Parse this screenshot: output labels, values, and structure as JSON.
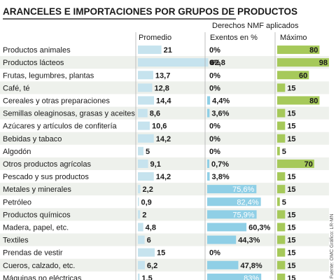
{
  "title": "ARANCELES E IMPORTACIONES POR GRUPOS DE PRODUCTOS",
  "group_header": "Derechos NMF aplicados",
  "column_headers": {
    "promedio": "Promedio",
    "exentos": "Exentos en %",
    "maximo": "Máximo"
  },
  "source": "Fuente: OMC   Gráfico: LR-MN",
  "colors": {
    "row_shade": "#eef1ec",
    "bar_promedio": "#c6e3ee",
    "bar_exentos": "#8fcfe6",
    "bar_maximo": "#a6c95a",
    "divider": "#b0b0b0",
    "title_rule": "#333333"
  },
  "chart_data": {
    "type": "table",
    "title": "ARANCELES E IMPORTACIONES POR GRUPOS DE PRODUCTOS",
    "subtitle": "Derechos NMF aplicados",
    "columns": [
      "Promedio",
      "Exentos en %",
      "Máximo"
    ],
    "rows": [
      {
        "category": "Productos animales",
        "promedio": 21,
        "promedio_label": "21",
        "exentos": 0,
        "exentos_label": "0%",
        "maximo": 80,
        "maximo_label": "80"
      },
      {
        "category": "Productos lácteos",
        "promedio": 62.8,
        "promedio_label": "62,8",
        "exentos": 0,
        "exentos_label": "0%",
        "maximo": 98,
        "maximo_label": "98"
      },
      {
        "category": "Frutas, legumbres, plantas",
        "promedio": 13.7,
        "promedio_label": "13,7",
        "exentos": 0,
        "exentos_label": "0%",
        "maximo": 60,
        "maximo_label": "60"
      },
      {
        "category": "Café, té",
        "promedio": 12.8,
        "promedio_label": "12,8",
        "exentos": 0,
        "exentos_label": "0%",
        "maximo": 15,
        "maximo_label": "15"
      },
      {
        "category": "Cereales y otras preparaciones",
        "promedio": 14.4,
        "promedio_label": "14,4",
        "exentos": 4.4,
        "exentos_label": "4,4%",
        "maximo": 80,
        "maximo_label": "80"
      },
      {
        "category": "Semillas oleaginosas, grasas y aceites",
        "promedio": 8.6,
        "promedio_label": "8,6",
        "exentos": 3.6,
        "exentos_label": "3,6%",
        "maximo": 15,
        "maximo_label": "15"
      },
      {
        "category": "Azúcares y artículos de confitería",
        "promedio": 10.6,
        "promedio_label": "10,6",
        "exentos": 0,
        "exentos_label": "0%",
        "maximo": 15,
        "maximo_label": "15"
      },
      {
        "category": "Bebidas y tabaco",
        "promedio": 14.2,
        "promedio_label": "14,2",
        "exentos": 0,
        "exentos_label": "0%",
        "maximo": 15,
        "maximo_label": "15"
      },
      {
        "category": "Algodón",
        "promedio": 5,
        "promedio_label": "5",
        "exentos": 0,
        "exentos_label": "0%",
        "maximo": 5,
        "maximo_label": "5"
      },
      {
        "category": "Otros productos agrícolas",
        "promedio": 9.1,
        "promedio_label": "9,1",
        "exentos": 0.7,
        "exentos_label": "0,7%",
        "maximo": 70,
        "maximo_label": "70"
      },
      {
        "category": "Pescado y sus productos",
        "promedio": 14.2,
        "promedio_label": "14,2",
        "exentos": 3.8,
        "exentos_label": "3,8%",
        "maximo": 15,
        "maximo_label": "15"
      },
      {
        "category": "Metales y minerales",
        "promedio": 2.2,
        "promedio_label": "2,2",
        "exentos": 75.6,
        "exentos_label": "75,6%",
        "maximo": 15,
        "maximo_label": "15"
      },
      {
        "category": "Petróleo",
        "promedio": 0.9,
        "promedio_label": "0,9",
        "exentos": 82.4,
        "exentos_label": "82,4%",
        "maximo": 5,
        "maximo_label": "5"
      },
      {
        "category": "Productos químicos",
        "promedio": 2,
        "promedio_label": "2",
        "exentos": 75.9,
        "exentos_label": "75,9%",
        "maximo": 15,
        "maximo_label": "15"
      },
      {
        "category": "Madera, papel, etc.",
        "promedio": 4.8,
        "promedio_label": "4,8",
        "exentos": 60.3,
        "exentos_label": "60,3%",
        "maximo": 15,
        "maximo_label": "15"
      },
      {
        "category": "Textiles",
        "promedio": 6,
        "promedio_label": "6",
        "exentos": 44.3,
        "exentos_label": "44,3%",
        "maximo": 15,
        "maximo_label": "15"
      },
      {
        "category": "Prendas de vestir",
        "promedio": 15,
        "promedio_label": "15",
        "exentos": 0,
        "exentos_label": "0%",
        "maximo": 15,
        "maximo_label": "15"
      },
      {
        "category": "Cueros, calzado, etc.",
        "promedio": 6.2,
        "promedio_label": "6,2",
        "exentos": 47.8,
        "exentos_label": "47,8%",
        "maximo": 15,
        "maximo_label": "15"
      },
      {
        "category": "Máquinas no eléctricas",
        "promedio": 1.5,
        "promedio_label": "1,5",
        "exentos": 83,
        "exentos_label": "83%",
        "maximo": 15,
        "maximo_label": "15"
      }
    ]
  }
}
